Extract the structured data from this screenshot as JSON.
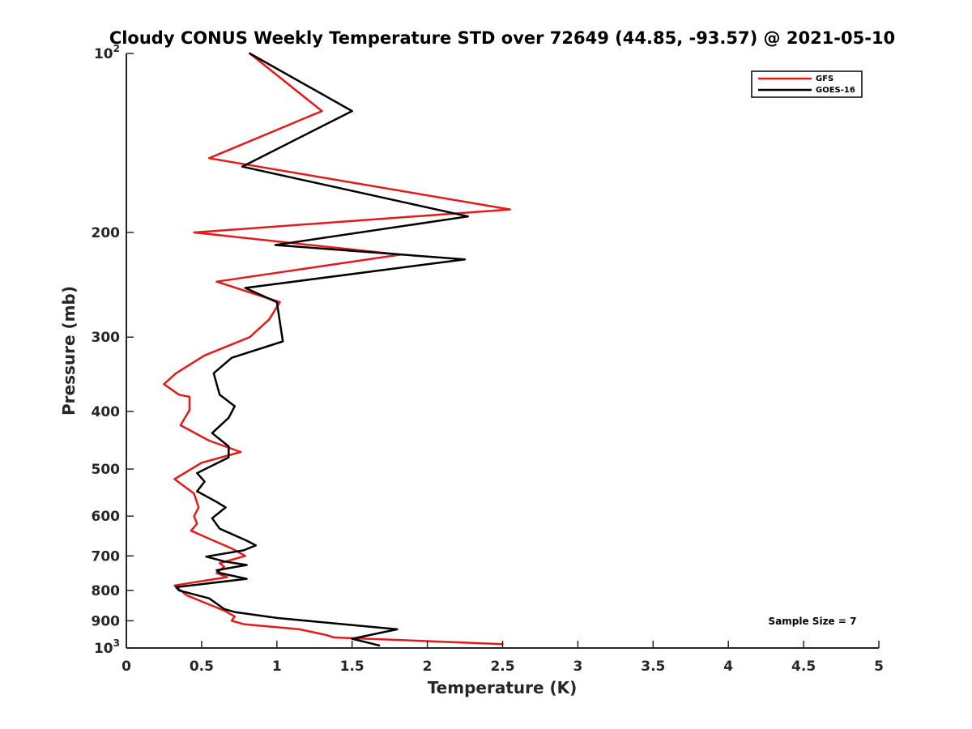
{
  "chart_data": {
    "type": "line",
    "title": "Cloudy CONUS Weekly Temperature STD over 72649 (44.85, -93.57) @ 2021-05-10",
    "xlabel": "Temperature (K)",
    "ylabel": "Pressure (mb)",
    "xlim": [
      0,
      5
    ],
    "ylim": [
      100,
      1000
    ],
    "y_scale": "log",
    "y_reversed": true,
    "grid": false,
    "legend_placement": "top-right",
    "x_ticks": [
      "0",
      "0.5",
      "1",
      "1.5",
      "2",
      "2.5",
      "3",
      "3.5",
      "4",
      "4.5",
      "5"
    ],
    "x_tick_values": [
      0,
      0.5,
      1,
      1.5,
      2,
      2.5,
      3,
      3.5,
      4,
      4.5,
      5
    ],
    "y_ticks": [
      {
        "value": 100,
        "base": "10",
        "exp": "2"
      },
      {
        "value": 200,
        "label": "200"
      },
      {
        "value": 300,
        "label": "300"
      },
      {
        "value": 400,
        "label": "400"
      },
      {
        "value": 500,
        "label": "500"
      },
      {
        "value": 600,
        "label": "600"
      },
      {
        "value": 700,
        "label": "700"
      },
      {
        "value": 800,
        "label": "800"
      },
      {
        "value": 900,
        "label": "900"
      },
      {
        "value": 1000,
        "base": "10",
        "exp": "3"
      }
    ],
    "annotation": "Sample Size = 7",
    "series": [
      {
        "name": "GFS",
        "color": "#e31a1c",
        "points": [
          [
            0.82,
            100
          ],
          [
            1.3,
            125
          ],
          [
            0.55,
            150
          ],
          [
            2.55,
            183
          ],
          [
            0.45,
            200
          ],
          [
            1.82,
            218
          ],
          [
            0.6,
            242
          ],
          [
            1.02,
            262
          ],
          [
            0.95,
            280
          ],
          [
            0.82,
            300
          ],
          [
            0.52,
            322
          ],
          [
            0.33,
            345
          ],
          [
            0.25,
            360
          ],
          [
            0.35,
            375
          ],
          [
            0.42,
            378
          ],
          [
            0.42,
            398
          ],
          [
            0.36,
            422
          ],
          [
            0.55,
            448
          ],
          [
            0.76,
            468
          ],
          [
            0.5,
            488
          ],
          [
            0.32,
            520
          ],
          [
            0.45,
            550
          ],
          [
            0.48,
            580
          ],
          [
            0.45,
            600
          ],
          [
            0.47,
            618
          ],
          [
            0.43,
            635
          ],
          [
            0.58,
            660
          ],
          [
            0.7,
            680
          ],
          [
            0.79,
            700
          ],
          [
            0.62,
            720
          ],
          [
            0.65,
            730
          ],
          [
            0.6,
            748
          ],
          [
            0.67,
            760
          ],
          [
            0.32,
            785
          ],
          [
            0.4,
            815
          ],
          [
            0.5,
            835
          ],
          [
            0.65,
            865
          ],
          [
            0.72,
            885
          ],
          [
            0.7,
            900
          ],
          [
            0.78,
            912
          ],
          [
            1.15,
            930
          ],
          [
            1.32,
            950
          ],
          [
            1.38,
            960
          ],
          [
            2.5,
            985
          ]
        ]
      },
      {
        "name": "GOES-16",
        "color": "#000000",
        "points": [
          [
            0.82,
            100
          ],
          [
            1.5,
            125
          ],
          [
            0.77,
            155
          ],
          [
            2.27,
            188
          ],
          [
            0.99,
            210
          ],
          [
            2.25,
            222
          ],
          [
            0.79,
            248
          ],
          [
            1.0,
            262
          ],
          [
            1.04,
            305
          ],
          [
            0.7,
            325
          ],
          [
            0.58,
            345
          ],
          [
            0.62,
            375
          ],
          [
            0.72,
            392
          ],
          [
            0.68,
            410
          ],
          [
            0.57,
            435
          ],
          [
            0.68,
            458
          ],
          [
            0.68,
            478
          ],
          [
            0.47,
            508
          ],
          [
            0.52,
            525
          ],
          [
            0.47,
            545
          ],
          [
            0.6,
            568
          ],
          [
            0.66,
            580
          ],
          [
            0.57,
            605
          ],
          [
            0.62,
            630
          ],
          [
            0.8,
            660
          ],
          [
            0.86,
            672
          ],
          [
            0.78,
            685
          ],
          [
            0.53,
            702
          ],
          [
            0.65,
            715
          ],
          [
            0.8,
            725
          ],
          [
            0.6,
            740
          ],
          [
            0.62,
            748
          ],
          [
            0.8,
            765
          ],
          [
            0.33,
            790
          ],
          [
            0.35,
            800
          ],
          [
            0.55,
            825
          ],
          [
            0.65,
            860
          ],
          [
            0.72,
            870
          ],
          [
            1.0,
            890
          ],
          [
            1.8,
            930
          ],
          [
            1.5,
            965
          ],
          [
            1.68,
            990
          ]
        ]
      }
    ]
  }
}
